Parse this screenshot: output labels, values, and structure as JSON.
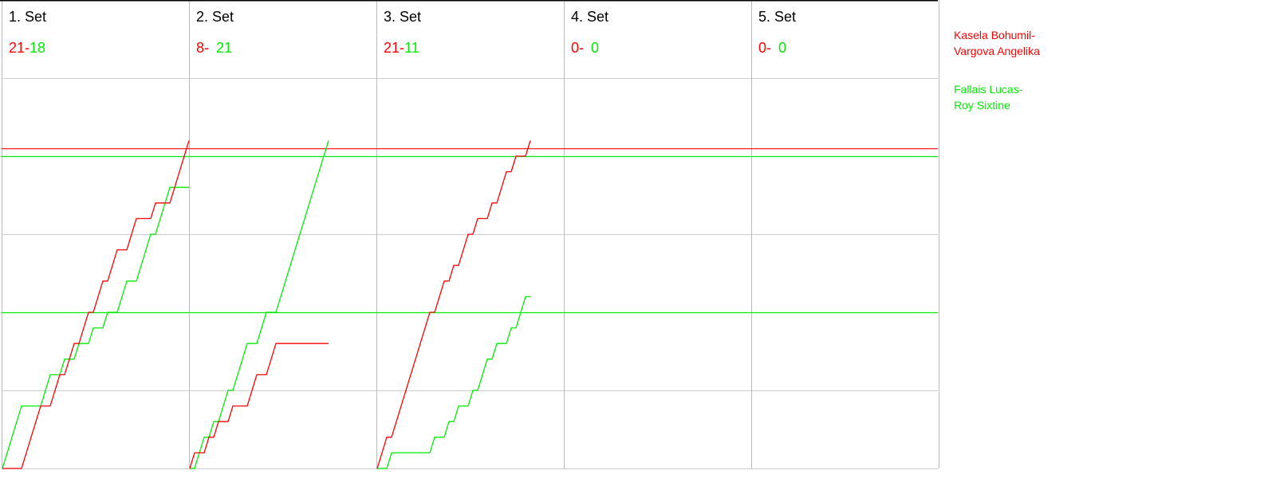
{
  "chart_data": {
    "type": "line",
    "title": "",
    "colors": {
      "team1": "#ff0000",
      "team2": "#00ee00",
      "grid": "#cccccc",
      "border": "#000000"
    },
    "legend": {
      "placement": "right",
      "entries": [
        {
          "line1": "Kasela Bohumil-",
          "line2": "Vargova Angelika",
          "color": "#ff0000"
        },
        {
          "line1": "Fallais Lucas-",
          "line2": "Roy Sixtine",
          "color": "#00ee00"
        }
      ]
    },
    "ylim": [
      0,
      25
    ],
    "y_grid_step": 5,
    "grid": true,
    "reference_lines": [
      {
        "value": 20.5,
        "color": "#ff0000"
      },
      {
        "value": 20,
        "color": "#00ee00"
      },
      {
        "value": 10,
        "color": "#00ee00"
      }
    ],
    "sets": [
      {
        "title": "1. Set",
        "score1": "21-",
        "score2": "18",
        "rallies": "GGGGRRRRGGRRGRRGRRGRRGRRGGRRGGGRGGGRRRR"
      },
      {
        "title": "2. Set",
        "score1": "8-",
        "score2": "21",
        "rallies": "RGGRGRGGRGGGRRGGRRGGGGGGGGGGG"
      },
      {
        "title": "3. Set",
        "score1": "21-",
        "score2": "11",
        "rallies": "RRGRRRRRRRRGRRGRGRRGRGGRGRRGRGGR"
      },
      {
        "title": "4. Set",
        "score1": "0-",
        "score2": "0",
        "rallies": ""
      },
      {
        "title": "5. Set",
        "score1": "0-",
        "score2": "0",
        "rallies": ""
      }
    ]
  }
}
